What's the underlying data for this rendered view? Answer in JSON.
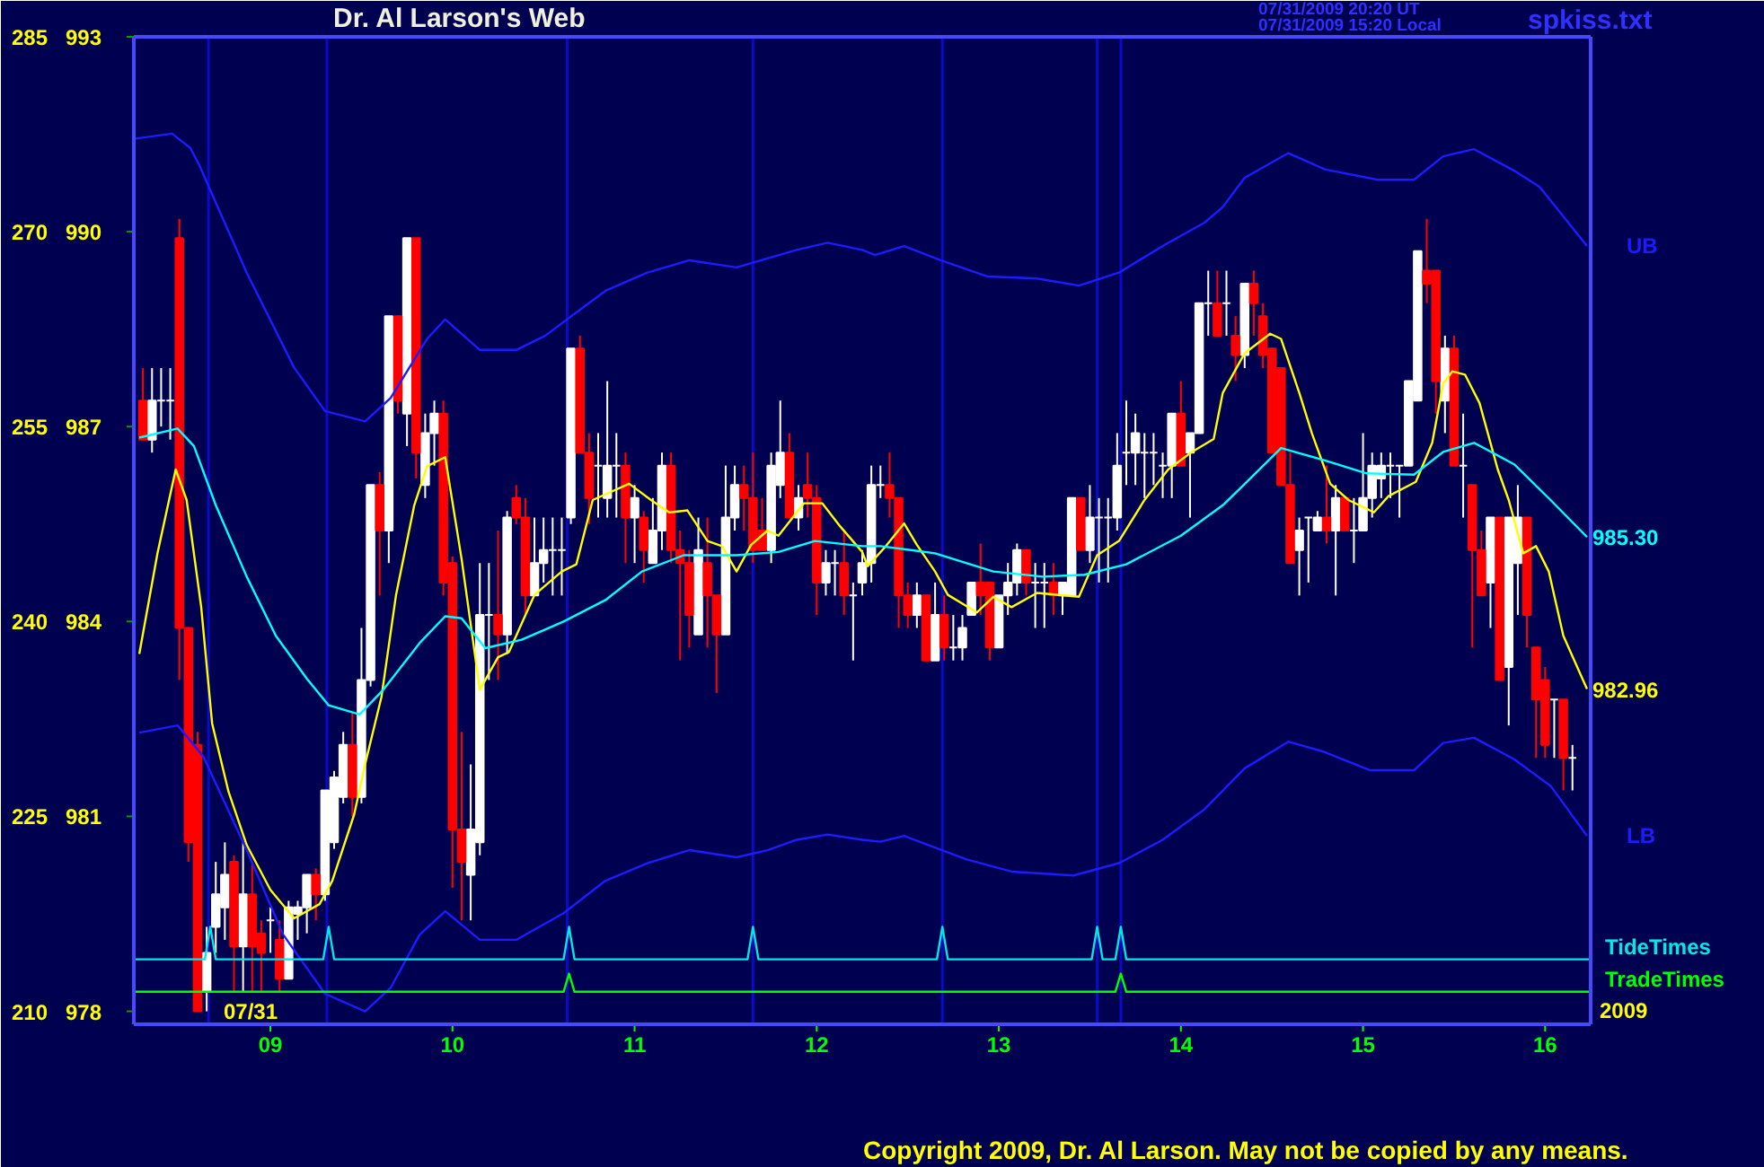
{
  "chart_data": {
    "type": "candlestick",
    "title": "Dr. Al Larson's Web",
    "annotations": [
      "07/31/2009 20:20 UT",
      "07/31/2009 15:20 Local",
      "spkiss.txt",
      "07/31",
      "2009",
      "Copyright 2009, Dr. Al Larson. May not be copied by any means.",
      {
        "text": "985.30",
        "x": 16.23,
        "y": 985.3
      },
      {
        "text": "982.96",
        "x": 16.23,
        "y": 982.96
      }
    ],
    "x": [
      8.3,
      8.35,
      8.4,
      8.45,
      8.5,
      8.55,
      8.6,
      8.65,
      8.7,
      8.75,
      8.8,
      8.85,
      8.9,
      8.95,
      9,
      9.05,
      9.1,
      9.15,
      9.2,
      9.25,
      9.3,
      9.35,
      9.4,
      9.45,
      9.5,
      9.55,
      9.6,
      9.65,
      9.7,
      9.75,
      9.8,
      9.85,
      9.9,
      9.95,
      10,
      10.05,
      10.1,
      10.15,
      10.2,
      10.25,
      10.3,
      10.35,
      10.4,
      10.45,
      10.5,
      10.55,
      10.6,
      10.65,
      10.7,
      10.75,
      10.8,
      10.85,
      10.9,
      10.95,
      11,
      11.05,
      11.1,
      11.15,
      11.2,
      11.25,
      11.3,
      11.35,
      11.4,
      11.45,
      11.5,
      11.55,
      11.6,
      11.65,
      11.7,
      11.75,
      11.8,
      11.85,
      11.9,
      11.95,
      12,
      12.05,
      12.1,
      12.15,
      12.2,
      12.25,
      12.3,
      12.35,
      12.4,
      12.45,
      12.5,
      12.55,
      12.6,
      12.65,
      12.7,
      12.75,
      12.8,
      12.85,
      12.9,
      12.95,
      13,
      13.05,
      13.1,
      13.15,
      13.2,
      13.25,
      13.3,
      13.35,
      13.4,
      13.45,
      13.5,
      13.55,
      13.6,
      13.65,
      13.7,
      13.75,
      13.8,
      13.85,
      13.9,
      13.95,
      14,
      14.05,
      14.1,
      14.15,
      14.2,
      14.25,
      14.3,
      14.35,
      14.4,
      14.45,
      14.5,
      14.55,
      14.6,
      14.65,
      14.7,
      14.75,
      14.8,
      14.85,
      14.9,
      14.95,
      15,
      15.05,
      15.1,
      15.15,
      15.2,
      15.25,
      15.3,
      15.35,
      15.4,
      15.45,
      15.5,
      15.55,
      15.6,
      15.65,
      15.7,
      15.75,
      15.8,
      15.85,
      15.9,
      15.95,
      16,
      16.05,
      16.1,
      16.15
    ],
    "ohlc": [
      [
        987.4,
        987.9,
        986.8,
        986.8
      ],
      [
        986.8,
        987.9,
        986.6,
        987.4
      ],
      [
        987.4,
        987.9,
        987.0,
        987.4
      ],
      [
        987.4,
        987.9,
        986.8,
        987.4
      ],
      [
        989.9,
        990.2,
        983.1,
        983.9
      ],
      [
        983.9,
        983.9,
        980.3,
        980.6
      ],
      [
        982.1,
        982.3,
        978.0,
        978.0
      ],
      [
        978.3,
        979.3,
        978.0,
        978.9
      ],
      [
        979.3,
        980.3,
        978.9,
        979.8
      ],
      [
        979.6,
        980.6,
        979.1,
        980.1
      ],
      [
        980.3,
        980.4,
        978.3,
        979.0
      ],
      [
        979.0,
        980.6,
        978.3,
        979.8
      ],
      [
        979.8,
        980.3,
        978.3,
        979.0
      ],
      [
        979.2,
        979.4,
        978.3,
        978.9
      ],
      [
        979.4,
        979.6,
        978.9,
        979.4
      ],
      [
        979.1,
        979.4,
        978.3,
        978.5
      ],
      [
        978.5,
        979.7,
        978.5,
        979.6
      ],
      [
        979.5,
        979.7,
        979.1,
        979.6
      ],
      [
        979.6,
        980.1,
        979.2,
        980.1
      ],
      [
        980.1,
        980.2,
        979.4,
        979.8
      ],
      [
        979.8,
        981.4,
        979.7,
        981.4
      ],
      [
        980.6,
        981.7,
        980.5,
        981.6
      ],
      [
        981.3,
        982.3,
        981.2,
        982.1
      ],
      [
        982.1,
        982.6,
        981.0,
        981.3
      ],
      [
        981.3,
        983.9,
        981.2,
        983.1
      ],
      [
        983.1,
        986.1,
        983.0,
        986.1
      ],
      [
        986.1,
        986.3,
        984.4,
        985.4
      ],
      [
        985.4,
        988.7,
        984.9,
        988.7
      ],
      [
        988.7,
        988.7,
        987.2,
        987.4
      ],
      [
        987.2,
        989.9,
        986.7,
        989.9
      ],
      [
        989.9,
        989.9,
        986.2,
        986.6
      ],
      [
        986.1,
        987.2,
        985.9,
        986.9
      ],
      [
        986.9,
        987.4,
        986.4,
        987.2
      ],
      [
        987.2,
        987.4,
        984.4,
        984.6
      ],
      [
        984.9,
        985.0,
        979.9,
        980.8
      ],
      [
        980.8,
        982.3,
        979.4,
        980.3
      ],
      [
        980.1,
        981.8,
        979.4,
        980.8
      ],
      [
        980.6,
        984.9,
        980.4,
        984.1
      ],
      [
        984.1,
        984.9,
        983.1,
        984.1
      ],
      [
        984.1,
        985.4,
        983.1,
        983.8
      ],
      [
        983.8,
        985.7,
        983.5,
        985.6
      ],
      [
        985.9,
        986.1,
        985.5,
        985.6
      ],
      [
        985.6,
        985.9,
        984.1,
        984.4
      ],
      [
        984.4,
        985.6,
        984.4,
        984.9
      ],
      [
        984.9,
        985.6,
        984.6,
        985.1
      ],
      [
        985.1,
        985.6,
        984.4,
        985.1
      ],
      [
        985.1,
        985.6,
        984.4,
        985.1
      ],
      [
        985.6,
        988.2,
        985.5,
        988.2
      ],
      [
        988.2,
        988.4,
        986.6,
        986.6
      ],
      [
        986.6,
        986.9,
        985.5,
        985.9
      ],
      [
        986.4,
        986.9,
        985.6,
        986.4
      ],
      [
        985.9,
        987.7,
        985.6,
        986.4
      ],
      [
        986.4,
        986.9,
        985.6,
        986.4
      ],
      [
        986.4,
        986.6,
        984.9,
        985.6
      ],
      [
        985.6,
        986.1,
        984.9,
        985.9
      ],
      [
        985.6,
        985.7,
        984.6,
        985.1
      ],
      [
        984.9,
        985.9,
        984.9,
        985.4
      ],
      [
        985.4,
        986.6,
        985.1,
        986.4
      ],
      [
        986.4,
        986.6,
        984.9,
        985.1
      ],
      [
        985.1,
        985.4,
        983.4,
        984.9
      ],
      [
        984.9,
        985.1,
        983.6,
        984.1
      ],
      [
        983.8,
        985.6,
        983.8,
        985.1
      ],
      [
        984.9,
        985.6,
        983.6,
        984.4
      ],
      [
        984.4,
        984.4,
        982.9,
        983.8
      ],
      [
        983.8,
        986.4,
        983.8,
        985.6
      ],
      [
        985.6,
        986.4,
        985.4,
        986.1
      ],
      [
        986.1,
        986.4,
        985.4,
        985.9
      ],
      [
        985.9,
        986.6,
        984.9,
        985.1
      ],
      [
        985.4,
        985.9,
        985.1,
        985.1
      ],
      [
        985.1,
        986.6,
        984.9,
        986.4
      ],
      [
        986.1,
        987.4,
        985.9,
        986.6
      ],
      [
        986.6,
        986.9,
        985.6,
        985.6
      ],
      [
        985.6,
        986.1,
        985.4,
        985.9
      ],
      [
        986.1,
        986.6,
        985.6,
        985.9
      ],
      [
        985.9,
        986.1,
        984.1,
        984.6
      ],
      [
        984.6,
        985.1,
        984.4,
        984.9
      ],
      [
        984.9,
        985.1,
        984.4,
        984.9
      ],
      [
        984.9,
        985.4,
        984.1,
        984.4
      ],
      [
        984.4,
        984.6,
        983.4,
        984.4
      ],
      [
        984.6,
        985.1,
        984.4,
        984.9
      ],
      [
        984.9,
        986.4,
        984.6,
        986.1
      ],
      [
        986.1,
        986.4,
        985.9,
        986.1
      ],
      [
        986.1,
        986.6,
        985.6,
        985.9
      ],
      [
        985.9,
        985.9,
        983.9,
        984.4
      ],
      [
        984.4,
        984.6,
        983.9,
        984.1
      ],
      [
        984.1,
        984.6,
        983.9,
        984.4
      ],
      [
        984.4,
        984.4,
        983.4,
        983.4
      ],
      [
        983.4,
        984.6,
        983.4,
        984.1
      ],
      [
        984.1,
        984.4,
        983.4,
        983.6
      ],
      [
        983.6,
        984.1,
        983.4,
        983.6
      ],
      [
        983.6,
        984.1,
        983.4,
        983.9
      ],
      [
        984.1,
        984.6,
        984.1,
        984.6
      ],
      [
        984.6,
        985.2,
        984.1,
        984.4
      ],
      [
        984.6,
        984.6,
        983.4,
        983.6
      ],
      [
        983.6,
        984.4,
        983.6,
        984.4
      ],
      [
        984.4,
        984.9,
        984.1,
        984.6
      ],
      [
        984.6,
        985.2,
        984.4,
        985.1
      ],
      [
        985.1,
        985.1,
        984.4,
        984.6
      ],
      [
        984.6,
        984.9,
        983.9,
        984.6
      ],
      [
        984.6,
        984.9,
        983.9,
        984.6
      ],
      [
        984.6,
        984.9,
        984.1,
        984.4
      ],
      [
        984.4,
        984.6,
        984.1,
        984.6
      ],
      [
        984.4,
        985.9,
        984.4,
        985.9
      ],
      [
        985.9,
        985.9,
        985.1,
        985.1
      ],
      [
        985.1,
        986.1,
        984.9,
        985.6
      ],
      [
        985.6,
        985.9,
        984.6,
        985.6
      ],
      [
        985.6,
        985.9,
        984.6,
        985.6
      ],
      [
        985.6,
        986.9,
        985.4,
        986.4
      ],
      [
        986.6,
        987.4,
        986.1,
        986.6
      ],
      [
        986.6,
        987.2,
        986.1,
        986.9
      ],
      [
        986.6,
        986.9,
        985.9,
        986.6
      ],
      [
        986.6,
        986.9,
        986.1,
        986.6
      ],
      [
        986.4,
        986.6,
        985.9,
        986.4
      ],
      [
        986.4,
        987.2,
        985.9,
        987.2
      ],
      [
        987.2,
        987.7,
        986.4,
        986.4
      ],
      [
        986.6,
        986.9,
        985.6,
        986.9
      ],
      [
        986.9,
        988.9,
        986.9,
        988.9
      ],
      [
        988.9,
        989.4,
        988.4,
        988.9
      ],
      [
        988.9,
        989.4,
        988.4,
        988.4
      ],
      [
        988.9,
        989.4,
        988.4,
        988.9
      ],
      [
        988.4,
        988.7,
        987.7,
        988.1
      ],
      [
        988.1,
        989.2,
        987.9,
        989.2
      ],
      [
        989.2,
        989.4,
        988.4,
        988.9
      ],
      [
        988.7,
        988.9,
        987.9,
        988.1
      ],
      [
        988.2,
        988.2,
        986.6,
        986.6
      ],
      [
        987.9,
        987.9,
        986.1,
        986.1
      ],
      [
        986.1,
        986.6,
        984.9,
        984.9
      ],
      [
        985.1,
        985.6,
        984.4,
        985.4
      ],
      [
        985.6,
        985.6,
        984.6,
        985.6
      ],
      [
        985.4,
        985.7,
        985.4,
        985.6
      ],
      [
        985.6,
        986.4,
        985.2,
        985.4
      ],
      [
        985.4,
        986.1,
        984.4,
        985.9
      ],
      [
        985.9,
        985.9,
        985.4,
        985.4
      ],
      [
        985.4,
        985.9,
        984.9,
        985.4
      ],
      [
        985.4,
        986.9,
        985.4,
        985.9
      ],
      [
        985.9,
        986.6,
        985.6,
        986.4
      ],
      [
        986.2,
        986.6,
        985.9,
        986.4
      ],
      [
        986.4,
        986.6,
        985.9,
        986.4
      ],
      [
        986.4,
        986.4,
        985.6,
        986.4
      ],
      [
        986.4,
        987.7,
        986.4,
        987.7
      ],
      [
        987.4,
        989.7,
        987.4,
        989.7
      ],
      [
        989.4,
        990.2,
        988.9,
        989.2
      ],
      [
        989.4,
        989.4,
        987.2,
        987.7
      ],
      [
        987.4,
        988.4,
        986.9,
        988.2
      ],
      [
        988.2,
        988.4,
        986.4,
        986.4
      ],
      [
        986.4,
        987.2,
        985.6,
        986.4
      ],
      [
        986.1,
        986.1,
        983.6,
        985.1
      ],
      [
        985.1,
        985.4,
        984.4,
        984.4
      ],
      [
        984.6,
        985.6,
        983.9,
        985.6
      ],
      [
        985.6,
        985.6,
        983.1,
        983.1
      ],
      [
        983.3,
        985.6,
        982.4,
        985.6
      ],
      [
        984.9,
        986.1,
        984.1,
        985.6
      ],
      [
        985.6,
        985.6,
        983.6,
        984.1
      ],
      [
        983.6,
        983.6,
        981.9,
        982.8
      ],
      [
        983.1,
        983.3,
        981.9,
        982.1
      ],
      [
        982.8,
        982.8,
        981.9,
        982.8
      ],
      [
        982.8,
        982.8,
        981.4,
        981.9
      ],
      [
        981.9,
        982.1,
        981.4,
        981.9
      ]
    ],
    "series": [
      {
        "type": "line",
        "color": "#ffff00",
        "x": [
          8.28,
          8.38,
          8.48,
          8.54,
          8.62,
          8.68,
          8.77,
          8.87,
          9.0,
          9.13,
          9.27,
          9.34,
          9.46,
          9.52,
          9.61,
          9.69,
          9.79,
          9.86,
          9.96,
          10.05,
          10.15,
          10.25,
          10.31,
          10.45,
          10.6,
          10.68,
          10.77,
          10.97,
          11.09,
          11.19,
          11.29,
          11.4,
          11.48,
          11.56,
          11.64,
          11.73,
          11.79,
          11.93,
          12.03,
          12.13,
          12.25,
          12.28,
          12.38,
          12.48,
          12.55,
          12.65,
          12.72,
          12.88,
          12.97,
          13.07,
          13.21,
          13.44,
          13.54,
          13.66,
          13.8,
          13.93,
          14.06,
          14.18,
          14.23,
          14.35,
          14.49,
          14.55,
          14.65,
          14.72,
          14.82,
          14.92,
          15.06,
          15.14,
          15.29,
          15.38,
          15.44,
          15.49,
          15.56,
          15.64,
          15.74,
          15.8,
          15.88,
          15.95,
          16.02,
          16.1,
          16.23
        ],
        "values": [
          983.5,
          985.05,
          986.34,
          985.87,
          984.22,
          982.43,
          981.38,
          980.56,
          979.87,
          979.43,
          979.65,
          980.01,
          981.03,
          981.8,
          982.84,
          984.41,
          985.79,
          986.39,
          986.53,
          984.96,
          982.95,
          983.45,
          983.53,
          984.41,
          984.77,
          984.88,
          985.87,
          986.12,
          985.87,
          985.68,
          985.71,
          985.24,
          985.16,
          984.77,
          985.18,
          985.4,
          985.32,
          985.82,
          985.82,
          985.46,
          985.07,
          984.85,
          985.16,
          985.51,
          985.18,
          984.77,
          984.41,
          984.14,
          984.38,
          984.22,
          984.44,
          984.38,
          985.02,
          985.24,
          985.87,
          986.34,
          986.61,
          986.81,
          987.52,
          988.13,
          988.43,
          988.35,
          987.52,
          986.89,
          986.12,
          985.87,
          985.68,
          985.93,
          986.15,
          986.75,
          987.66,
          987.85,
          987.8,
          987.36,
          986.34,
          985.87,
          985.05,
          985.16,
          984.77,
          983.78,
          982.96
        ]
      },
      {
        "type": "line",
        "color": "#00ffff",
        "x": [
          8.28,
          8.49,
          8.58,
          8.7,
          8.87,
          9.03,
          9.2,
          9.32,
          9.49,
          9.62,
          9.82,
          9.96,
          10.05,
          10.18,
          10.38,
          10.61,
          10.84,
          11.04,
          11.27,
          11.56,
          11.79,
          11.99,
          12.25,
          12.35,
          12.65,
          12.97,
          13.24,
          13.47,
          13.7,
          14.0,
          14.23,
          14.33,
          14.55,
          14.79,
          15.02,
          15.28,
          15.44,
          15.61,
          15.83,
          16.03,
          16.23
        ],
        "values": [
          986.83,
          986.97,
          986.7,
          985.79,
          984.69,
          983.78,
          983.12,
          982.71,
          982.57,
          982.95,
          983.67,
          984.08,
          984.05,
          983.59,
          983.72,
          984.0,
          984.33,
          984.77,
          985.02,
          985.02,
          985.07,
          985.24,
          985.16,
          985.16,
          985.05,
          984.77,
          984.69,
          984.72,
          984.88,
          985.32,
          985.79,
          986.06,
          986.67,
          986.48,
          986.28,
          986.26,
          986.61,
          986.75,
          986.42,
          985.87,
          985.3
        ]
      },
      {
        "type": "line",
        "name": "UB",
        "color": "#1c1cff",
        "x": [
          8.25,
          8.46,
          8.56,
          8.61,
          8.87,
          9.13,
          9.3,
          9.52,
          9.66,
          9.86,
          9.96,
          10.15,
          10.35,
          10.51,
          10.71,
          10.84,
          11.07,
          11.3,
          11.56,
          11.73,
          11.89,
          12.06,
          12.25,
          12.32,
          12.48,
          12.68,
          12.94,
          13.21,
          13.44,
          13.66,
          13.9,
          14.13,
          14.23,
          14.35,
          14.59,
          14.79,
          15.08,
          15.28,
          15.44,
          15.61,
          15.83,
          15.97,
          16.23
        ],
        "values": [
          991.43,
          991.51,
          991.29,
          991.02,
          989.37,
          987.91,
          987.24,
          987.08,
          987.44,
          988.35,
          988.65,
          988.18,
          988.18,
          988.4,
          988.82,
          989.09,
          989.37,
          989.56,
          989.45,
          989.59,
          989.72,
          989.83,
          989.72,
          989.64,
          989.78,
          989.56,
          989.31,
          989.28,
          989.17,
          989.37,
          989.78,
          990.14,
          990.38,
          990.83,
          991.21,
          990.96,
          990.8,
          990.8,
          991.16,
          991.27,
          990.94,
          990.69,
          989.78
        ]
      },
      {
        "type": "line",
        "name": "LB",
        "color": "#1c1cff",
        "x": [
          8.28,
          8.49,
          8.63,
          8.87,
          9.07,
          9.3,
          9.52,
          9.66,
          9.82,
          9.96,
          10.15,
          10.35,
          10.61,
          10.84,
          11.07,
          11.3,
          11.56,
          11.73,
          11.89,
          12.06,
          12.25,
          12.35,
          12.48,
          12.82,
          13.07,
          13.41,
          13.66,
          13.9,
          14.13,
          14.35,
          14.59,
          14.79,
          15.04,
          15.28,
          15.44,
          15.61,
          15.83,
          16.03,
          16.23
        ],
        "values": [
          982.29,
          982.4,
          981.93,
          980.48,
          979.18,
          978.27,
          978.0,
          978.36,
          979.18,
          979.54,
          979.1,
          979.1,
          979.51,
          980.01,
          980.28,
          980.48,
          980.37,
          980.48,
          980.64,
          980.72,
          980.64,
          980.61,
          980.7,
          980.34,
          980.15,
          980.09,
          980.28,
          980.64,
          981.11,
          981.74,
          982.15,
          981.99,
          981.71,
          981.71,
          982.13,
          982.21,
          981.88,
          981.47,
          980.7
        ]
      },
      {
        "type": "line",
        "name": "TideTimes",
        "color": "#00e8e8",
        "axis": "y2",
        "x": [
          8.25,
          8.64,
          8.67,
          8.7,
          9.29,
          9.32,
          9.35,
          10.61,
          10.64,
          10.67,
          11.62,
          11.65,
          11.68,
          12.66,
          12.69,
          12.72,
          13.51,
          13.54,
          13.57,
          13.64,
          13.67,
          13.7,
          16.25
        ],
        "values": [
          214.0,
          214.0,
          216.5,
          214.0,
          214.0,
          216.5,
          214.0,
          214.0,
          216.5,
          214.0,
          214.0,
          216.5,
          214.0,
          214.0,
          216.5,
          214.0,
          214.0,
          216.5,
          214.0,
          214.0,
          216.5,
          214.0,
          214.0
        ]
      },
      {
        "type": "line",
        "name": "TradeTimes",
        "color": "#00ff00",
        "axis": "y2",
        "x": [
          8.25,
          10.61,
          10.64,
          10.67,
          13.64,
          13.67,
          13.7,
          16.25
        ],
        "values": [
          211.5,
          211.5,
          212.9,
          211.5,
          211.5,
          212.9,
          211.5,
          211.5
        ]
      }
    ],
    "ref_lines": [
      {
        "axis": "x",
        "value": 8.66,
        "color": "#0a0ac8"
      },
      {
        "axis": "x",
        "value": 9.31,
        "color": "#0a0ac8"
      },
      {
        "axis": "x",
        "value": 10.63,
        "color": "#0a0ac8"
      },
      {
        "axis": "x",
        "value": 11.65,
        "color": "#0a0ac8"
      },
      {
        "axis": "x",
        "value": 12.69,
        "color": "#0a0ac8"
      },
      {
        "axis": "x",
        "value": 13.54,
        "color": "#0a0ac8"
      },
      {
        "axis": "x",
        "value": 13.67,
        "color": "#0a0ac8"
      }
    ],
    "xlim": [
      8.25,
      16.25
    ],
    "xticks": [
      {
        "value": 9,
        "label": "09"
      },
      10,
      11,
      12,
      13,
      14,
      15,
      16
    ],
    "ylim": [
      977.8,
      993
    ],
    "yticks": [
      978,
      981,
      984,
      987,
      990,
      993
    ],
    "y2lim": [
      209,
      285
    ],
    "y2ticks": [
      210,
      225,
      240,
      255,
      270,
      285
    ]
  }
}
